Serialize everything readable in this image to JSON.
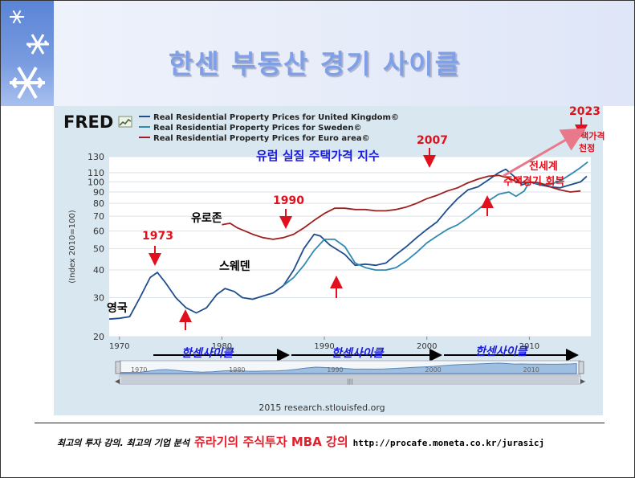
{
  "slide": {
    "title": "한센 부동산 경기 사이클",
    "footer_left": "최고의 투자 강의. 최고의 기업 분석",
    "footer_brand": "쥬라기의 주식투자 MBA 강의",
    "footer_url": "http://procafe.moneta.co.kr/jurasicj"
  },
  "chart_data": {
    "type": "line",
    "logo": "FRED",
    "source": "2015 research.stlouisfed.org",
    "ylabel": "(Index 2010=100)",
    "yscale": "log",
    "ylim": [
      20,
      130
    ],
    "xlim": [
      1969,
      2016
    ],
    "y_ticks": [
      20,
      30,
      40,
      50,
      60,
      70,
      80,
      90,
      100,
      110,
      130
    ],
    "x_ticks": [
      1970,
      1980,
      1990,
      2000,
      2010
    ],
    "navigator_ticks": [
      1970,
      1980,
      1990,
      2000,
      2010
    ],
    "legend": [
      {
        "name": "Real Residential Property Prices for United Kingdom©",
        "color": "#1f4e8c"
      },
      {
        "name": "Real Residential Property Prices for Sweden©",
        "color": "#2e8ab0"
      },
      {
        "name": "Real Residential Property Prices for Euro area©",
        "color": "#9e1f1f"
      }
    ],
    "series": [
      {
        "name": "Real Residential Property Prices for United Kingdom©",
        "color": "#1f4e8c",
        "points": [
          [
            1969,
            24
          ],
          [
            1970,
            24.2
          ],
          [
            1971,
            24.6
          ],
          [
            1972,
            30
          ],
          [
            1973,
            37
          ],
          [
            1973.7,
            39
          ],
          [
            1974.5,
            35
          ],
          [
            1975.5,
            30
          ],
          [
            1976.5,
            27
          ],
          [
            1977.5,
            25.6
          ],
          [
            1978.5,
            27
          ],
          [
            1979.5,
            31
          ],
          [
            1980.3,
            33
          ],
          [
            1981.2,
            32
          ],
          [
            1982,
            30
          ],
          [
            1983,
            29.5
          ],
          [
            1984,
            30.5
          ],
          [
            1985,
            31.5
          ],
          [
            1986,
            34
          ],
          [
            1987,
            40
          ],
          [
            1988,
            50
          ],
          [
            1989,
            58
          ],
          [
            1989.6,
            57
          ],
          [
            1990.5,
            52
          ],
          [
            1992,
            47
          ],
          [
            1993,
            42
          ],
          [
            1994,
            42.5
          ],
          [
            1995,
            42
          ],
          [
            1996,
            43
          ],
          [
            1997,
            47
          ],
          [
            1998,
            51
          ],
          [
            1999,
            56
          ],
          [
            2000,
            61
          ],
          [
            2001,
            66
          ],
          [
            2002,
            75
          ],
          [
            2003,
            84
          ],
          [
            2004,
            92
          ],
          [
            2005,
            95
          ],
          [
            2006,
            102
          ],
          [
            2007,
            110
          ],
          [
            2007.7,
            114
          ],
          [
            2008.5,
            106
          ],
          [
            2009.3,
            97
          ],
          [
            2010,
            100
          ],
          [
            2011,
            97
          ],
          [
            2012,
            95
          ],
          [
            2013,
            94
          ],
          [
            2014,
            97
          ],
          [
            2015,
            100
          ],
          [
            2015.6,
            106
          ]
        ]
      },
      {
        "name": "Real Residential Property Prices for Sweden©",
        "color": "#2e8ab0",
        "points": [
          [
            1986,
            34
          ],
          [
            1987,
            37
          ],
          [
            1988,
            42
          ],
          [
            1989,
            49
          ],
          [
            1990,
            55
          ],
          [
            1991,
            55
          ],
          [
            1992,
            51
          ],
          [
            1993,
            43
          ],
          [
            1994,
            41
          ],
          [
            1995,
            40
          ],
          [
            1996,
            40
          ],
          [
            1997,
            41
          ],
          [
            1998,
            44
          ],
          [
            1999,
            48
          ],
          [
            2000,
            53
          ],
          [
            2001,
            57
          ],
          [
            2002,
            61
          ],
          [
            2003,
            64
          ],
          [
            2004,
            69
          ],
          [
            2005,
            75
          ],
          [
            2006,
            82
          ],
          [
            2007,
            88
          ],
          [
            2008,
            90
          ],
          [
            2008.7,
            86
          ],
          [
            2009.5,
            91
          ],
          [
            2010,
            100
          ],
          [
            2011,
            98
          ],
          [
            2012,
            97
          ],
          [
            2013,
            101
          ],
          [
            2014,
            108
          ],
          [
            2015,
            116
          ],
          [
            2015.7,
            123
          ]
        ]
      },
      {
        "name": "Real Residential Property Prices for Euro area©",
        "color": "#9e1f1f",
        "points": [
          [
            1980,
            64
          ],
          [
            1980.8,
            65
          ],
          [
            1981.5,
            62
          ],
          [
            1983,
            58
          ],
          [
            1984,
            56
          ],
          [
            1985,
            55
          ],
          [
            1986,
            56
          ],
          [
            1987,
            58
          ],
          [
            1988,
            62
          ],
          [
            1989,
            67
          ],
          [
            1990,
            72
          ],
          [
            1991,
            76
          ],
          [
            1992,
            76
          ],
          [
            1993,
            75
          ],
          [
            1994,
            75
          ],
          [
            1995,
            74
          ],
          [
            1996,
            74
          ],
          [
            1997,
            75
          ],
          [
            1998,
            77
          ],
          [
            1999,
            80
          ],
          [
            2000,
            84
          ],
          [
            2001,
            87
          ],
          [
            2002,
            91
          ],
          [
            2003,
            94
          ],
          [
            2004,
            99
          ],
          [
            2005,
            103
          ],
          [
            2006,
            106
          ],
          [
            2007,
            107
          ],
          [
            2008,
            104
          ],
          [
            2009,
            99
          ],
          [
            2010,
            100
          ],
          [
            2011,
            99
          ],
          [
            2012,
            95
          ],
          [
            2013,
            92
          ],
          [
            2014,
            90
          ],
          [
            2015,
            91
          ]
        ]
      }
    ],
    "annotations": {
      "subtitle": "유럽 실질 주택가격 지수",
      "uk": "영국",
      "euro": "유로존",
      "sweden": "스웨덴",
      "y1973": "1973",
      "y1990": "1990",
      "y2007": "2007",
      "y2023": "2023",
      "peak_note_line1": "주택가격",
      "peak_note_line2": "천정",
      "recovery_line1": "전세계",
      "recovery_line2": "주택경기 회복",
      "cycle1": "한센사이클",
      "cycle2": "한센사이클",
      "cycle3": "한센사이클"
    },
    "colors": {
      "annotation_red": "#e0101c",
      "annotation_blue": "#1a1ae0",
      "navigator_fill": "#9fbfe0"
    }
  }
}
